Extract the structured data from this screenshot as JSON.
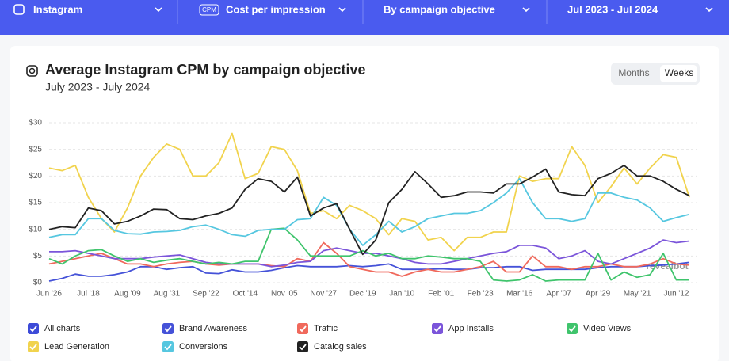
{
  "filters": [
    {
      "label": "Instagram"
    },
    {
      "badge": "CPM",
      "label": "Cost per impression"
    },
    {
      "label": "By campaign objective"
    },
    {
      "label": "Jul 2023 - Jul 2024"
    }
  ],
  "toggle": [
    "Months",
    "Weeks"
  ],
  "legend_all": "All charts",
  "watermark": "revealbot",
  "chart_data": {
    "type": "line",
    "title": "Average Instagram CPM by campaign objective",
    "subtitle": "July 2023 - July 2024",
    "categories": [
      "Jun '26",
      null,
      null,
      "Jul '18",
      null,
      null,
      "Aug '09",
      null,
      null,
      "Aug '31",
      null,
      null,
      "Sep '22",
      null,
      null,
      "Oct '14",
      null,
      null,
      "Nov '05",
      null,
      null,
      "Nov '27",
      null,
      null,
      "Dec '19",
      null,
      null,
      "Jan '10",
      null,
      null,
      "Feb '01",
      null,
      null,
      "Feb '23",
      null,
      null,
      "Mar '16",
      null,
      null,
      "Apr '07",
      null,
      null,
      "Apr '29",
      null,
      null,
      "May '21",
      null,
      null,
      "Jun '12",
      null
    ],
    "ylim": [
      0,
      30
    ],
    "yticks": [
      {
        "value": 0,
        "label": "$0"
      },
      {
        "value": 5,
        "label": "$5"
      },
      {
        "value": 10,
        "label": "$10"
      },
      {
        "value": 15,
        "label": "$15"
      },
      {
        "value": 20,
        "label": "$20"
      },
      {
        "value": 25,
        "label": "$25"
      },
      {
        "value": 30,
        "label": "$30"
      }
    ],
    "grid": true,
    "series": [
      {
        "name": "Brand Awareness",
        "color": "#4552d8",
        "values": [
          0.3,
          0.8,
          1.6,
          1.2,
          1.2,
          1.5,
          2,
          3,
          3,
          2.5,
          2.8,
          3,
          1.8,
          1.7,
          2.4,
          2,
          2,
          2.3,
          2.8,
          3.2,
          3,
          3,
          3,
          3.2,
          3,
          3.2,
          3.5,
          2.5,
          2.5,
          2.5,
          2.6,
          2.5,
          2.5,
          2.8,
          2.8,
          3,
          3,
          2.3,
          2.5,
          2.5,
          2.5,
          2.5,
          2.8,
          3,
          3,
          3,
          3.2,
          3.3,
          3.5,
          3.8
        ]
      },
      {
        "name": "Traffic",
        "color": "#f0695c",
        "values": [
          3.5,
          4,
          4.5,
          5,
          5.5,
          4.5,
          3.5,
          3.5,
          3,
          3.5,
          3.8,
          4,
          3.5,
          3.3,
          3.5,
          3.5,
          3.5,
          3.2,
          3,
          4.5,
          4,
          7.5,
          5.5,
          3,
          2.5,
          2,
          2,
          1.2,
          2,
          2.5,
          2,
          2,
          2.5,
          3,
          4,
          2,
          2,
          5,
          3,
          3,
          2.5,
          3,
          3,
          3.5,
          3,
          3,
          3.5,
          4.5,
          3.5,
          3.3
        ]
      },
      {
        "name": "App Installs",
        "color": "#7b55da",
        "values": [
          5.8,
          5.8,
          6,
          5.5,
          5,
          4.5,
          4.5,
          4.5,
          4.8,
          5,
          5.2,
          4.5,
          3.8,
          3.5,
          3.5,
          3.5,
          3.5,
          3,
          3.3,
          3.8,
          4,
          6,
          6.5,
          6,
          5.5,
          5.5,
          5,
          4.5,
          3.8,
          3.5,
          3.5,
          4,
          4.5,
          5,
          5.5,
          5.8,
          7,
          7,
          6.5,
          4.5,
          5,
          6,
          4,
          3.5,
          4.5,
          5.5,
          6.5,
          8,
          7.5,
          7.8
        ]
      },
      {
        "name": "Video Views",
        "color": "#3fc46c",
        "values": [
          4.5,
          3.5,
          5,
          6,
          6.2,
          5,
          4,
          4.5,
          3.8,
          4.2,
          4.5,
          4,
          3.5,
          3.8,
          3.5,
          4,
          4,
          10,
          10.2,
          8,
          5,
          5,
          5,
          5,
          6,
          5,
          5.5,
          4.5,
          4.5,
          5,
          4.8,
          4.5,
          4.5,
          4,
          0.5,
          0.3,
          0.5,
          1.5,
          0.3,
          0.5,
          0.5,
          0.5,
          5.5,
          0.5,
          2,
          1,
          1.5,
          5.5,
          0.5,
          0.5
        ]
      },
      {
        "name": "Lead Generation",
        "color": "#f1d34d",
        "values": [
          21.5,
          21,
          22,
          16,
          12,
          9.5,
          14,
          20,
          23.5,
          26,
          25,
          20,
          20,
          22.5,
          28,
          19.5,
          20.5,
          25.5,
          25,
          21,
          13,
          13.5,
          12,
          14.5,
          13.5,
          12,
          9,
          12,
          11.5,
          8,
          8.5,
          6,
          8.5,
          8.5,
          9.5,
          9.5,
          20,
          19,
          19.5,
          19.5,
          25.5,
          22,
          15,
          18,
          21.5,
          18.5,
          21.5,
          24,
          23.5,
          16
        ]
      },
      {
        "name": "Conversions",
        "color": "#56c7e0",
        "values": [
          8.5,
          9,
          9,
          12,
          12,
          9.8,
          9.2,
          9.1,
          9.5,
          9.6,
          9.8,
          10.5,
          10.8,
          10,
          9,
          8.7,
          9.8,
          10,
          10,
          11.8,
          12,
          16,
          14.5,
          10,
          7,
          9,
          11.5,
          9.5,
          10.5,
          12,
          12.5,
          13,
          13,
          13.5,
          15,
          16.8,
          19.5,
          15,
          12,
          12,
          11.5,
          12,
          16.8,
          16.8,
          16,
          15.5,
          14,
          11.5,
          12.2,
          12.8
        ]
      },
      {
        "name": "Catalog sales",
        "color": "#222222",
        "values": [
          10,
          10.5,
          10.3,
          14,
          13.5,
          11,
          11.5,
          12.5,
          13.8,
          13.7,
          12,
          11.8,
          12.5,
          13,
          14,
          17.5,
          19.5,
          19,
          17,
          19.8,
          12.5,
          14,
          14.8,
          10,
          5.3,
          8,
          15,
          17.5,
          20.8,
          18.5,
          16,
          16.3,
          17,
          17,
          16.8,
          18.5,
          18.5,
          19.8,
          21.3,
          17,
          16.5,
          16.3,
          19.5,
          20.5,
          22,
          20,
          20,
          19,
          17.5,
          16.3
        ]
      }
    ]
  }
}
